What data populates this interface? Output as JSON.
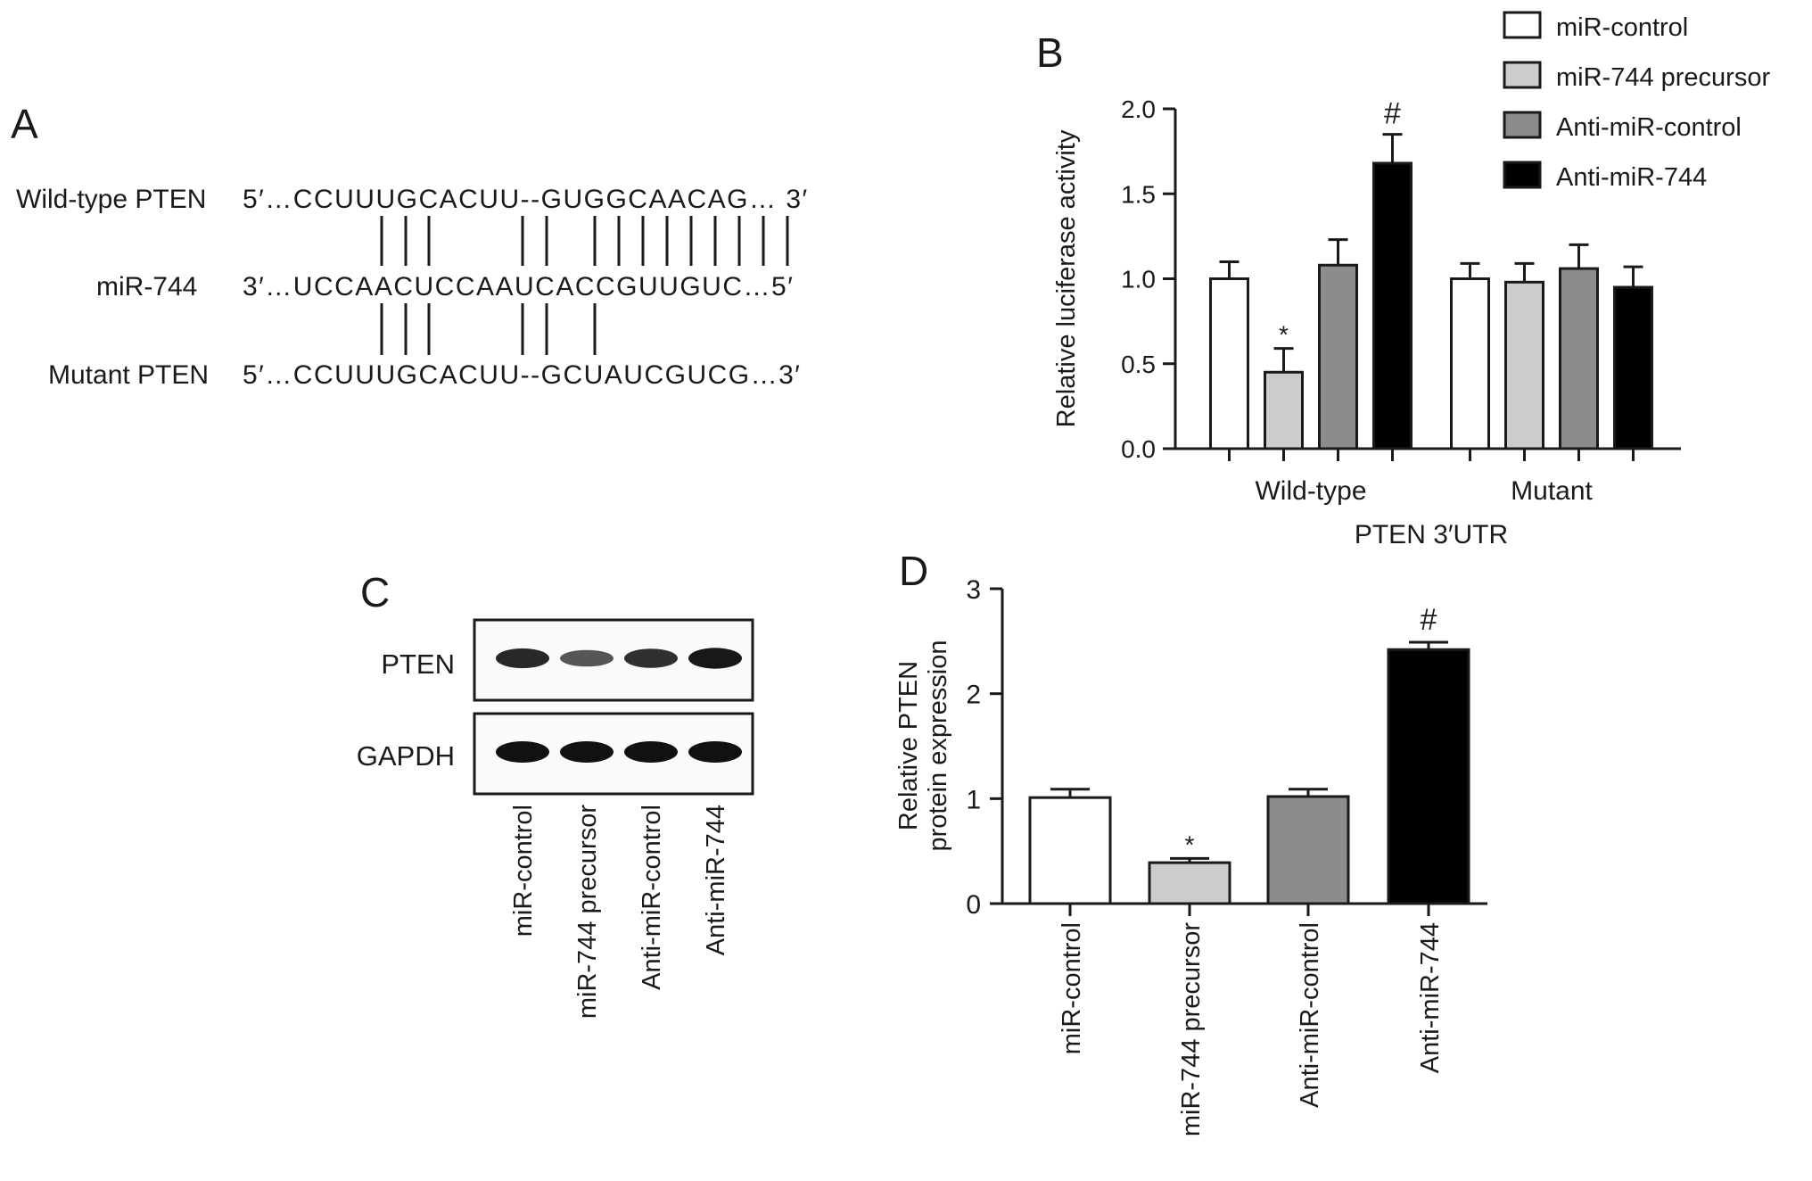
{
  "panels": {
    "a": {
      "letter": "A",
      "rows": [
        {
          "label": "Wild-type PTEN",
          "seq": "5′…CCUUUGCACUU--GUGGCAACAG… 3′"
        },
        {
          "label": "miR-744",
          "seq": "3′…UCCAACUCCAAUCACCGUUGUC…5′"
        },
        {
          "label": "Mutant PTEN",
          "seq": "5′…CCUUUGCACUU--GCUAUCGUCG…3′"
        }
      ]
    },
    "b": {
      "letter": "B"
    },
    "c": {
      "letter": "C",
      "blot_labels": [
        "PTEN",
        "GAPDH"
      ],
      "lanes": [
        "miR-control",
        "miR-744 precursor",
        "Anti-miR-control",
        "Anti-miR-744"
      ],
      "band_intensity": {
        "PTEN": [
          0.85,
          0.55,
          0.8,
          0.95
        ],
        "GAPDH": [
          1,
          1,
          1,
          1
        ]
      }
    },
    "d": {
      "letter": "D"
    }
  },
  "legend": [
    {
      "label": "miR-control",
      "color": "#ffffff"
    },
    {
      "label": "miR-744 precursor",
      "color": "#cccccc"
    },
    {
      "label": "Anti-miR-control",
      "color": "#8c8c8c"
    },
    {
      "label": "Anti-miR-744",
      "color": "#000000"
    }
  ],
  "chart_data": [
    {
      "type": "bar",
      "ylabel": "Relative luciferase activity",
      "xlabel": "PTEN 3′UTR",
      "categories": [
        "Wild-type",
        "Mutant"
      ],
      "ylim": [
        0,
        2.0
      ],
      "yticks": [
        "0.0",
        "0.5",
        "1.0",
        "1.5",
        "2.0"
      ],
      "legend_position": "top-right",
      "series": [
        {
          "name": "miR-control",
          "color": "#ffffff",
          "values": [
            1.0,
            1.0
          ],
          "errors": [
            0.1,
            0.09
          ],
          "marks": [
            "",
            ""
          ]
        },
        {
          "name": "miR-744 precursor",
          "color": "#cccccc",
          "values": [
            0.45,
            0.98
          ],
          "errors": [
            0.14,
            0.11
          ],
          "marks": [
            "*",
            ""
          ]
        },
        {
          "name": "Anti-miR-control",
          "color": "#8c8c8c",
          "values": [
            1.08,
            1.06
          ],
          "errors": [
            0.15,
            0.14
          ],
          "marks": [
            "",
            ""
          ]
        },
        {
          "name": "Anti-miR-744",
          "color": "#000000",
          "values": [
            1.68,
            0.95
          ],
          "errors": [
            0.17,
            0.12
          ],
          "marks": [
            "#",
            ""
          ]
        }
      ]
    },
    {
      "type": "bar",
      "ylabel": "Relative PTEN protein expression",
      "ylim": [
        0,
        3
      ],
      "yticks": [
        "0",
        "1",
        "2",
        "3"
      ],
      "categories": [
        "miR-control",
        "miR-744 precursor",
        "Anti-miR-control",
        "Anti-miR-744"
      ],
      "colors": [
        "#ffffff",
        "#cccccc",
        "#8c8c8c",
        "#000000"
      ],
      "values": [
        1.01,
        0.39,
        1.02,
        2.42
      ],
      "errors": [
        0.08,
        0.04,
        0.07,
        0.07
      ],
      "marks": [
        "",
        "*",
        "",
        "#"
      ]
    }
  ]
}
